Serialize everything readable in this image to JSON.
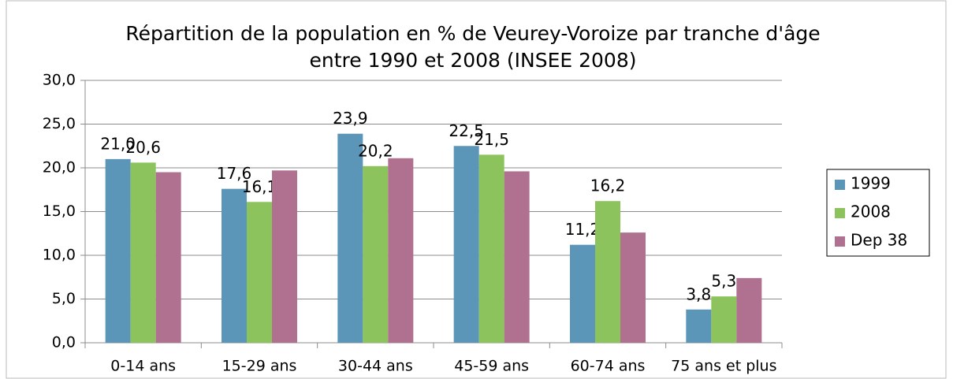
{
  "chart_data": {
    "type": "bar",
    "title": [
      "Répartition de la population en % de Veurey-Voroize par tranche d'âge",
      "entre 1990 et 2008"
    ],
    "subtitle": "(INSEE 2008)",
    "categories": [
      "0-14 ans",
      "15-29 ans",
      "30-44 ans",
      "45-59 ans",
      "60-74 ans",
      "75 ans et plus"
    ],
    "series": [
      {
        "name": "1999",
        "color": "#5b95b8",
        "values": [
          21.0,
          17.6,
          23.9,
          22.5,
          11.2,
          3.8
        ],
        "value_labels": [
          "21,0",
          "17,6",
          "23,9",
          "22,5",
          "11,2",
          "3,8"
        ]
      },
      {
        "name": "2008",
        "color": "#8cc35c",
        "values": [
          20.6,
          16.1,
          20.2,
          21.5,
          16.2,
          5.3
        ],
        "value_labels": [
          "20,6",
          "16,1",
          "20,2",
          "21,5",
          "16,2",
          "5,3"
        ]
      },
      {
        "name": "Dep 38",
        "color": "#b0708f",
        "values": [
          19.5,
          19.7,
          21.1,
          19.6,
          12.6,
          7.4
        ]
      }
    ],
    "ylim": [
      0,
      30
    ],
    "yticks": [
      {
        "value": 0,
        "label": "0,0"
      },
      {
        "value": 5,
        "label": "5,0"
      },
      {
        "value": 10,
        "label": "10,0"
      },
      {
        "value": 15,
        "label": "15,0"
      },
      {
        "value": 20,
        "label": "20,0"
      },
      {
        "value": 25,
        "label": "25,0"
      },
      {
        "value": 30,
        "label": "30,0"
      }
    ],
    "grid": true,
    "legend": "right"
  }
}
